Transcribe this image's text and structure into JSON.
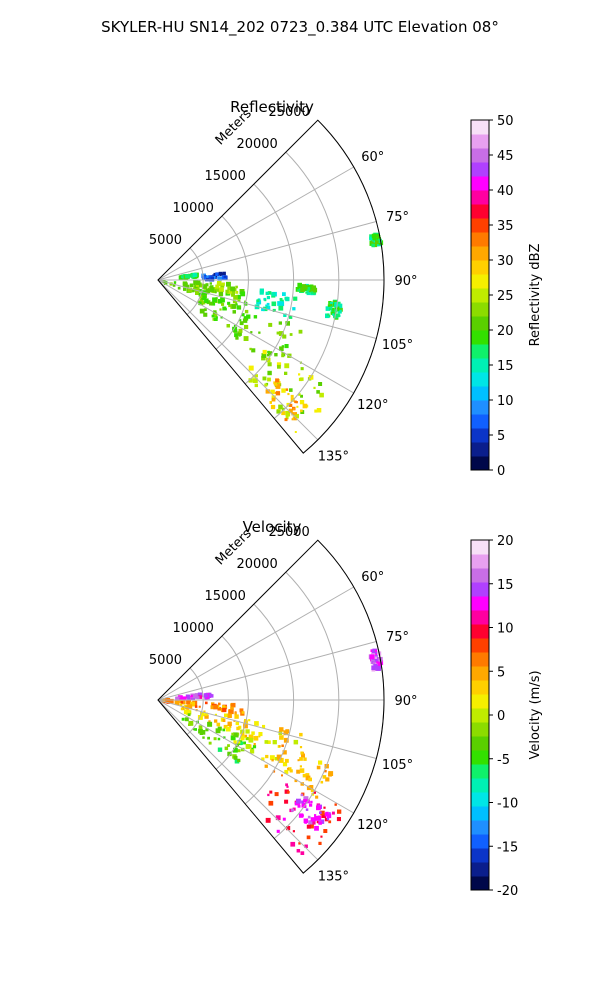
{
  "figure": {
    "suptitle": "SKYLER-HU  SN14_202  0723_0.384 UTC Elevation 08°"
  },
  "chart_data": [
    {
      "type": "heatmap",
      "title": "Reflectivity",
      "rlabel": "Meters",
      "range_ticks": [
        5000,
        10000,
        15000,
        20000,
        25000
      ],
      "azimuth_ticks": [
        "60°",
        "75°",
        "90°",
        "105°",
        "120°",
        "135°"
      ],
      "azimuth_tick_values": [
        60,
        75,
        90,
        105,
        120,
        135
      ],
      "sector": [
        45,
        140
      ],
      "range_max": 25000,
      "colorbar": {
        "label": "Reflectivity dBZ",
        "vmin": 0,
        "vmax": 50,
        "ticks": [
          0,
          5,
          10,
          15,
          20,
          25,
          30,
          35,
          40,
          45,
          50
        ],
        "colors": [
          "#00084a",
          "#0a1e8c",
          "#0b35c8",
          "#1060ff",
          "#1f8fff",
          "#00c0ff",
          "#00e6e6",
          "#00f0b4",
          "#10f06a",
          "#33e000",
          "#5ad000",
          "#8cdc00",
          "#c0ec00",
          "#f5f000",
          "#ffd000",
          "#ffa800",
          "#ff7a00",
          "#ff4000",
          "#ff0030",
          "#ff00a0",
          "#ff00ff",
          "#b040ff",
          "#c86ee6",
          "#e8a0f0",
          "#f7e0f7"
        ]
      },
      "echo_regions": [
        {
          "az": [
            96,
            115
          ],
          "r": [
            600,
            10500
          ],
          "value": 21
        },
        {
          "az": [
            108,
            127
          ],
          "r": [
            5000,
            17000
          ],
          "value": 21
        },
        {
          "az": [
            120,
            138
          ],
          "r": [
            14000,
            23000
          ],
          "value": 24
        },
        {
          "az": [
            130,
            138
          ],
          "r": [
            17000,
            22000
          ],
          "value": 30
        },
        {
          "az": [
            93,
            103
          ],
          "r": [
            4000,
            9000
          ],
          "value": 23
        },
        {
          "az": [
            95,
            106
          ],
          "r": [
            11000,
            15500
          ],
          "value": 15
        },
        {
          "az": [
            84,
            89
          ],
          "r": [
            5000,
            7500
          ],
          "value": 6
        },
        {
          "az": [
            81,
            85
          ],
          "r": [
            2500,
            4500
          ],
          "value": 18
        },
        {
          "az": [
            78,
            81
          ],
          "r": [
            24000,
            25000
          ],
          "value": 18
        },
        {
          "az": [
            92,
            95
          ],
          "r": [
            15500,
            17500
          ],
          "value": 18
        },
        {
          "az": [
            97,
            102
          ],
          "r": [
            19000,
            20500
          ],
          "value": 18
        }
      ]
    },
    {
      "type": "heatmap",
      "title": "Velocity",
      "rlabel": "Meters",
      "range_ticks": [
        5000,
        10000,
        15000,
        20000,
        25000
      ],
      "azimuth_ticks": [
        "60°",
        "75°",
        "90°",
        "105°",
        "120°",
        "135°"
      ],
      "azimuth_tick_values": [
        60,
        75,
        90,
        105,
        120,
        135
      ],
      "sector": [
        45,
        140
      ],
      "range_max": 25000,
      "colorbar": {
        "label": "Velocity (m/s)",
        "vmin": -20,
        "vmax": 20,
        "ticks": [
          -20,
          -15,
          -10,
          -5,
          0,
          5,
          10,
          15,
          20
        ],
        "colors": [
          "#00084a",
          "#0a1e8c",
          "#0b35c8",
          "#1060ff",
          "#1f8fff",
          "#00c0ff",
          "#00e6e6",
          "#00f0b4",
          "#10f06a",
          "#33e000",
          "#5ad000",
          "#8cdc00",
          "#c0ec00",
          "#f5f000",
          "#ffd000",
          "#ffa800",
          "#ff7a00",
          "#ff4000",
          "#ff0030",
          "#ff00a0",
          "#ff00ff",
          "#b040ff",
          "#c86ee6",
          "#e8a0f0",
          "#f7e0f7"
        ]
      },
      "echo_regions": [
        {
          "az": [
            93,
            101
          ],
          "r": [
            500,
            9500
          ],
          "value": 6
        },
        {
          "az": [
            101,
            113
          ],
          "r": [
            2500,
            10500
          ],
          "value": 3
        },
        {
          "az": [
            113,
            130
          ],
          "r": [
            3000,
            12000
          ],
          "value": -4
        },
        {
          "az": [
            103,
            120
          ],
          "r": [
            9000,
            17000
          ],
          "value": 2
        },
        {
          "az": [
            110,
            122
          ],
          "r": [
            14000,
            21000
          ],
          "value": 4
        },
        {
          "az": [
            120,
            138
          ],
          "r": [
            16000,
            24000
          ],
          "value": 10
        },
        {
          "az": [
            123,
            130
          ],
          "r": [
            19000,
            23000
          ],
          "value": 14
        },
        {
          "az": [
            83,
            88
          ],
          "r": [
            2000,
            6000
          ],
          "value": 14
        },
        {
          "az": [
            77,
            82
          ],
          "r": [
            24000,
            25000
          ],
          "value": 15
        }
      ]
    }
  ]
}
